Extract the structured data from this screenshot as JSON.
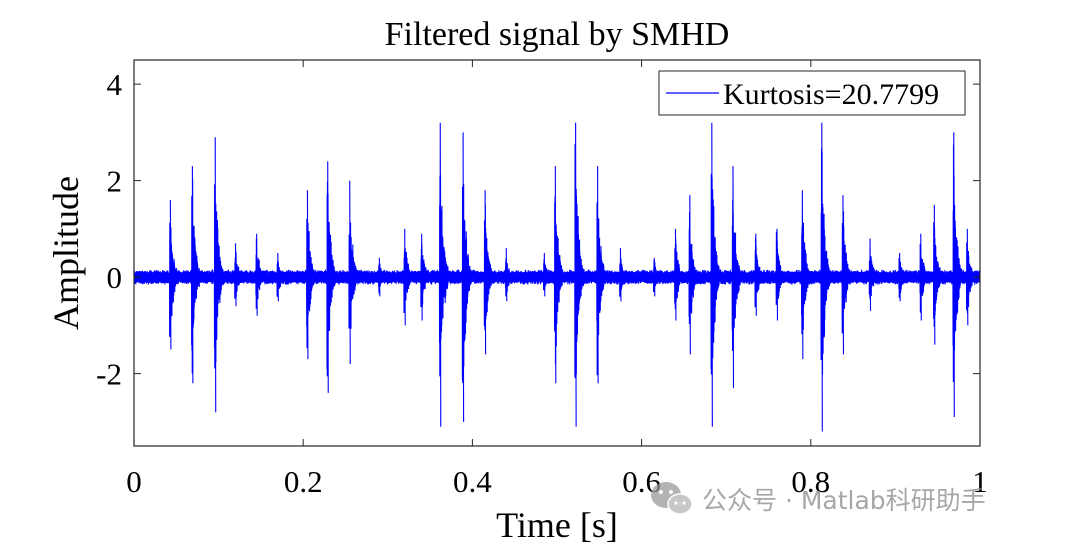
{
  "chart_data": {
    "type": "line",
    "title": "Filtered signal by SMHD",
    "xlabel": "Time [s]",
    "ylabel": "Amplitude",
    "xlim": [
      0,
      1
    ],
    "ylim": [
      -3.5,
      4.5
    ],
    "x_ticks": [
      0,
      0.2,
      0.4,
      0.6,
      0.8,
      1
    ],
    "x_tick_labels": [
      "0",
      "0.2",
      "0.4",
      "0.6",
      "0.8",
      "1"
    ],
    "y_ticks": [
      -2,
      0,
      2,
      4
    ],
    "y_tick_labels": [
      "-2",
      "0",
      "2",
      "4"
    ],
    "grid": false,
    "legend_position": "top-right",
    "series": [
      {
        "name": "Kurtosis=20.7799",
        "color": "#0000ff",
        "bursts": [
          {
            "t": 0.043,
            "up": 1.6,
            "down": -1.5
          },
          {
            "t": 0.069,
            "up": 2.3,
            "down": -2.2
          },
          {
            "t": 0.096,
            "up": 2.9,
            "down": -2.8
          },
          {
            "t": 0.12,
            "up": 0.7,
            "down": -0.6
          },
          {
            "t": 0.145,
            "up": 0.9,
            "down": -0.8
          },
          {
            "t": 0.17,
            "up": 0.5,
            "down": -0.5
          },
          {
            "t": 0.205,
            "up": 1.8,
            "down": -1.7
          },
          {
            "t": 0.229,
            "up": 2.4,
            "down": -2.4
          },
          {
            "t": 0.255,
            "up": 2.0,
            "down": -1.8
          },
          {
            "t": 0.29,
            "up": 0.4,
            "down": -0.4
          },
          {
            "t": 0.32,
            "up": 1.0,
            "down": -1.0
          },
          {
            "t": 0.34,
            "up": 0.9,
            "down": -0.9
          },
          {
            "t": 0.362,
            "up": 3.2,
            "down": -3.1
          },
          {
            "t": 0.389,
            "up": 3.0,
            "down": -3.0
          },
          {
            "t": 0.415,
            "up": 1.8,
            "down": -1.6
          },
          {
            "t": 0.44,
            "up": 0.6,
            "down": -0.5
          },
          {
            "t": 0.485,
            "up": 0.5,
            "down": -0.4
          },
          {
            "t": 0.498,
            "up": 2.3,
            "down": -2.2
          },
          {
            "t": 0.522,
            "up": 3.2,
            "down": -3.1
          },
          {
            "t": 0.548,
            "up": 2.3,
            "down": -2.2
          },
          {
            "t": 0.575,
            "up": 0.6,
            "down": -0.5
          },
          {
            "t": 0.615,
            "up": 0.4,
            "down": -0.4
          },
          {
            "t": 0.64,
            "up": 1.0,
            "down": -0.9
          },
          {
            "t": 0.657,
            "up": 1.7,
            "down": -1.6
          },
          {
            "t": 0.683,
            "up": 3.2,
            "down": -3.1
          },
          {
            "t": 0.708,
            "up": 2.3,
            "down": -2.3
          },
          {
            "t": 0.735,
            "up": 0.9,
            "down": -0.8
          },
          {
            "t": 0.76,
            "up": 1.0,
            "down": -0.9
          },
          {
            "t": 0.79,
            "up": 1.8,
            "down": -1.7
          },
          {
            "t": 0.813,
            "up": 3.2,
            "down": -3.2
          },
          {
            "t": 0.838,
            "up": 1.7,
            "down": -1.6
          },
          {
            "t": 0.87,
            "up": 0.8,
            "down": -0.7
          },
          {
            "t": 0.905,
            "up": 0.5,
            "down": -0.5
          },
          {
            "t": 0.93,
            "up": 0.9,
            "down": -0.9
          },
          {
            "t": 0.946,
            "up": 1.5,
            "down": -1.4
          },
          {
            "t": 0.969,
            "up": 3.0,
            "down": -2.9
          },
          {
            "t": 0.985,
            "up": 1.0,
            "down": -1.0
          }
        ]
      }
    ]
  },
  "watermark": {
    "text": "公众号 · Matlab科研助手",
    "icon": "wechat-icon"
  }
}
